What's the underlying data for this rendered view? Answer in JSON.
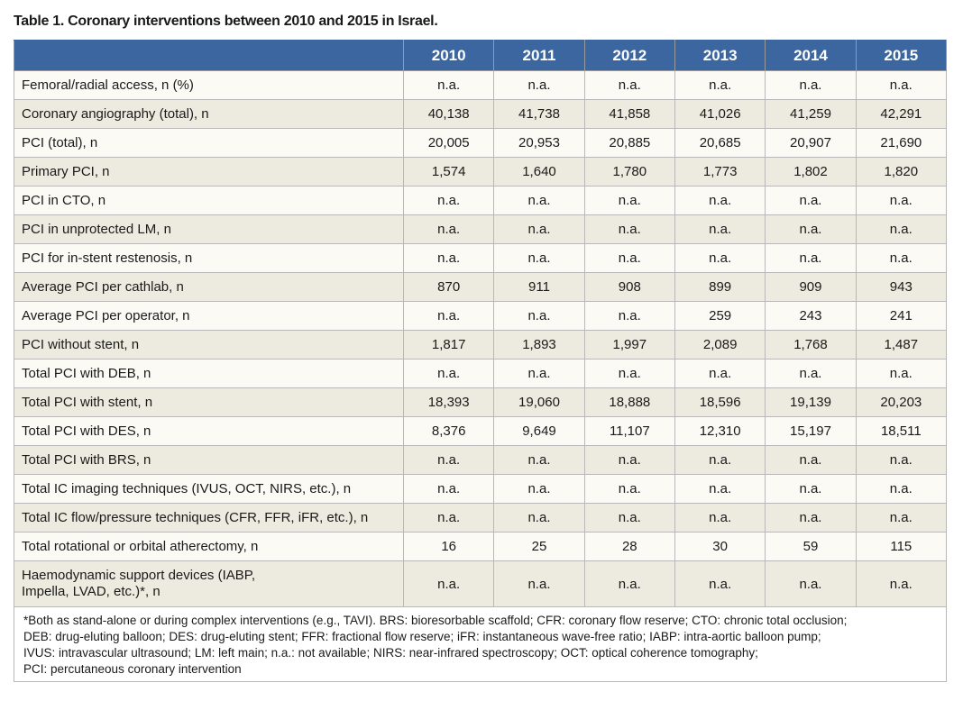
{
  "header": {
    "title": "Table 1. Coronary interventions between 2010 and 2015 in Israel."
  },
  "table": {
    "columns": [
      "2010",
      "2011",
      "2012",
      "2013",
      "2014",
      "2015"
    ],
    "rows": [
      [
        "Femoral/radial access, n (%)",
        "n.a.",
        "n.a.",
        "n.a.",
        "n.a.",
        "n.a.",
        "n.a."
      ],
      [
        "Coronary angiography (total), n",
        "40,138",
        "41,738",
        "41,858",
        "41,026",
        "41,259",
        "42,291"
      ],
      [
        "PCI (total), n",
        "20,005",
        "20,953",
        "20,885",
        "20,685",
        "20,907",
        "21,690"
      ],
      [
        "Primary PCI, n",
        "1,574",
        "1,640",
        "1,780",
        "1,773",
        "1,802",
        "1,820"
      ],
      [
        "PCI in CTO, n",
        "n.a.",
        "n.a.",
        "n.a.",
        "n.a.",
        "n.a.",
        "n.a."
      ],
      [
        "PCI in unprotected LM, n",
        "n.a.",
        "n.a.",
        "n.a.",
        "n.a.",
        "n.a.",
        "n.a."
      ],
      [
        "PCI for in-stent restenosis, n",
        "n.a.",
        "n.a.",
        "n.a.",
        "n.a.",
        "n.a.",
        "n.a."
      ],
      [
        "Average PCI per cathlab, n",
        "870",
        "911",
        "908",
        "899",
        "909",
        "943"
      ],
      [
        "Average PCI per operator, n",
        "n.a.",
        "n.a.",
        "n.a.",
        "259",
        "243",
        "241"
      ],
      [
        "PCI without stent, n",
        "1,817",
        "1,893",
        "1,997",
        "2,089",
        "1,768",
        "1,487"
      ],
      [
        "Total PCI with DEB, n",
        "n.a.",
        "n.a.",
        "n.a.",
        "n.a.",
        "n.a.",
        "n.a."
      ],
      [
        "Total PCI with stent, n",
        "18,393",
        "19,060",
        "18,888",
        "18,596",
        "19,139",
        "20,203"
      ],
      [
        "Total PCI with DES, n",
        "8,376",
        "9,649",
        "11,107",
        "12,310",
        "15,197",
        "18,511"
      ],
      [
        "Total PCI with BRS, n",
        "n.a.",
        "n.a.",
        "n.a.",
        "n.a.",
        "n.a.",
        "n.a."
      ],
      [
        "Total IC imaging techniques (IVUS, OCT, NIRS, etc.), n",
        "n.a.",
        "n.a.",
        "n.a.",
        "n.a.",
        "n.a.",
        "n.a."
      ],
      [
        "Total IC flow/pressure techniques (CFR, FFR, iFR, etc.), n",
        "n.a.",
        "n.a.",
        "n.a.",
        "n.a.",
        "n.a.",
        "n.a."
      ],
      [
        "Total rotational or orbital atherectomy, n",
        "16",
        "25",
        "28",
        "30",
        "59",
        "115"
      ],
      [
        "Haemodynamic support devices (IABP, Impella, LVAD, etc.)*, n",
        "n.a.",
        "n.a.",
        "n.a.",
        "n.a.",
        "n.a.",
        "n.a."
      ]
    ]
  },
  "footnote": [
    "*Both as stand-alone or during complex interventions (e.g., TAVI). BRS: bioresorbable scaffold; CFR: coronary flow reserve; CTO: chronic total occlusion;",
    "DEB: drug-eluting balloon; DES: drug-eluting stent; FFR: fractional flow reserve; iFR: instantaneous wave-free ratio; IABP: intra-aortic balloon pump;",
    "IVUS: intravascular ultrasound; LM: left main; n.a.: not available; NIRS: near-infrared spectroscopy; OCT: optical coherence tomography;",
    "PCI: percutaneous coronary intervention"
  ]
}
